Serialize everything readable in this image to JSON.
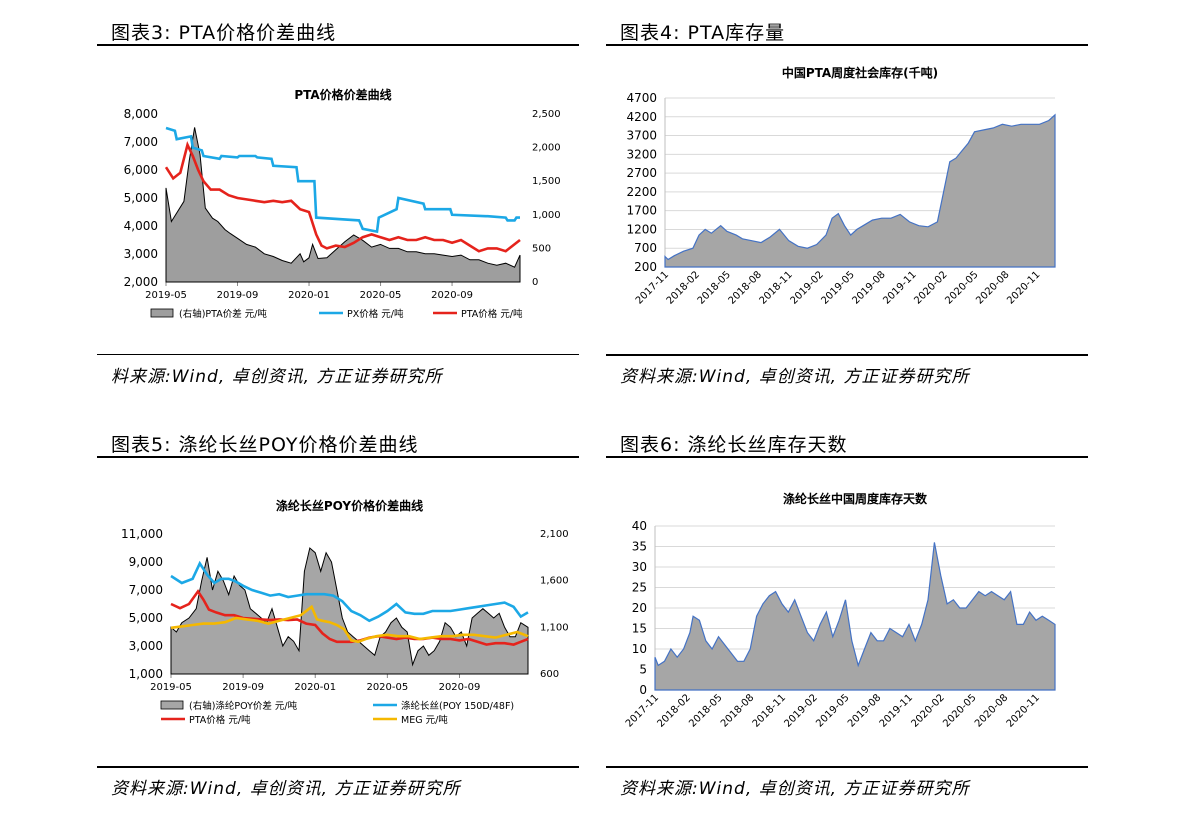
{
  "panels": [
    {
      "heading": "图表3:  PTA价格价差曲线",
      "source": "料来源:Wind, 卓创资讯, 方正证券研究所"
    },
    {
      "heading": "图表4:  PTA库存量",
      "source": "资料来源:Wind, 卓创资讯, 方正证券研究所"
    },
    {
      "heading": "图表5:  涤纶长丝POY价格价差曲线",
      "source": "资料来源:Wind, 卓创资讯, 方正证券研究所"
    },
    {
      "heading": "图表6:  涤纶长丝库存天数",
      "source": "资料来源:Wind, 卓创资讯, 方正证券研究所"
    }
  ],
  "chart_data": [
    {
      "type": "line",
      "title": "PTA价格价差曲线",
      "x_range": [
        "2019-05",
        "2020-12"
      ],
      "x_tick_labels": [
        "2019-05",
        "2019-09",
        "2020-01",
        "2020-05",
        "2020-09"
      ],
      "y_left": {
        "min": 2000,
        "max": 8000,
        "ticks": [
          "2,000",
          "3,000",
          "4,000",
          "5,000",
          "6,000",
          "7,000",
          "8,000"
        ]
      },
      "y_right": {
        "min": 0,
        "max": 2500,
        "ticks": [
          "0",
          "500",
          "1,000",
          "1,500",
          "2,000",
          "2,500"
        ]
      },
      "legend": [
        "(右轴)PTA价差  元/吨",
        "PX价格  元/吨",
        "PTA价格  元/吨"
      ],
      "legend_position": "bottom",
      "series": [
        {
          "name": "(右轴)PTA价差  元/吨",
          "axis": "right",
          "type": "area",
          "color": "#9e9e9e",
          "x": [
            0,
            0.3,
            1,
            1.3,
            1.6,
            1.9,
            2.2,
            2.6,
            2.9,
            3.3,
            3.6,
            4,
            4.5,
            5,
            5.5,
            6,
            6.5,
            7,
            7.5,
            7.7,
            8,
            8.2,
            8.5,
            9,
            9.5,
            10,
            10.5,
            11,
            11.5,
            12,
            12.5,
            13,
            13.5,
            14,
            14.5,
            15,
            15.5,
            16,
            16.5,
            17,
            17.5,
            18,
            18.5,
            19,
            19.5,
            19.8
          ],
          "values": [
            1400,
            900,
            1200,
            1800,
            2300,
            1900,
            1100,
            950,
            900,
            780,
            720,
            650,
            560,
            520,
            420,
            380,
            320,
            280,
            420,
            300,
            360,
            560,
            350,
            360,
            480,
            600,
            700,
            620,
            520,
            560,
            500,
            500,
            450,
            450,
            420,
            420,
            400,
            380,
            400,
            330,
            330,
            280,
            250,
            280,
            220,
            400
          ]
        },
        {
          "name": "PX价格  元/吨",
          "axis": "left",
          "type": "line",
          "color": "#1ca8e6",
          "x": [
            0,
            0.5,
            0.6,
            1.4,
            1.5,
            2.0,
            2.1,
            3.0,
            3.1,
            4.0,
            4.1,
            5.0,
            5.1,
            5.9,
            6.0,
            7.3,
            7.4,
            8.3,
            8.4,
            10.8,
            11.0,
            11.8,
            11.9,
            12.9,
            13.0,
            14.4,
            14.5,
            15.9,
            16.0,
            17.9,
            18.0,
            19.0,
            19.1,
            19.5,
            19.6,
            19.8
          ],
          "values": [
            7500,
            7400,
            7100,
            7200,
            6800,
            6700,
            6500,
            6400,
            6500,
            6450,
            6500,
            6500,
            6450,
            6400,
            6150,
            6100,
            5600,
            5600,
            4300,
            4200,
            3900,
            3800,
            4300,
            4600,
            5000,
            4800,
            4600,
            4600,
            4400,
            4350,
            4350,
            4300,
            4200,
            4200,
            4300,
            4300
          ]
        },
        {
          "name": "PTA价格  元/吨",
          "axis": "left",
          "type": "line",
          "color": "#e5231c",
          "x": [
            0,
            0.4,
            0.8,
            1.2,
            1.5,
            1.8,
            2.1,
            2.5,
            3,
            3.5,
            4,
            4.5,
            5,
            5.5,
            6,
            6.5,
            7,
            7.5,
            8,
            8.4,
            8.7,
            9,
            9.5,
            10,
            10.5,
            11,
            11.5,
            12,
            12.5,
            13,
            13.5,
            14,
            14.5,
            15,
            15.5,
            16,
            16.5,
            17,
            17.5,
            18,
            18.5,
            19,
            19.4,
            19.8
          ],
          "values": [
            6100,
            5700,
            5900,
            6900,
            6500,
            6000,
            5600,
            5300,
            5300,
            5100,
            5000,
            4950,
            4900,
            4850,
            4900,
            4850,
            4900,
            4600,
            4500,
            3700,
            3300,
            3200,
            3300,
            3250,
            3400,
            3600,
            3700,
            3600,
            3500,
            3600,
            3500,
            3500,
            3600,
            3500,
            3500,
            3400,
            3500,
            3300,
            3100,
            3200,
            3200,
            3100,
            3300,
            3500
          ]
        }
      ]
    },
    {
      "type": "area",
      "title": "中国PTA周度社会库存(千吨)",
      "x_tick_labels": [
        "2017-11",
        "2018-02",
        "2018-05",
        "2018-08",
        "2018-11",
        "2019-02",
        "2019-05",
        "2019-08",
        "2019-11",
        "2020-02",
        "2020-05",
        "2020-08",
        "2020-11"
      ],
      "y": {
        "min": 200,
        "max": 4700,
        "ticks": [
          "200",
          "700",
          "1200",
          "1700",
          "2200",
          "2700",
          "3200",
          "3700",
          "4200",
          "4700"
        ]
      },
      "series": [
        {
          "name": "",
          "color": "#a6a6a6",
          "x": [
            0,
            0.1,
            0.3,
            0.6,
            0.9,
            1.1,
            1.3,
            1.5,
            1.8,
            2.0,
            2.3,
            2.5,
            2.8,
            3.1,
            3.4,
            3.7,
            4.0,
            4.3,
            4.6,
            4.9,
            5.2,
            5.4,
            5.6,
            5.8,
            6.0,
            6.2,
            6.4,
            6.7,
            7.0,
            7.3,
            7.6,
            7.9,
            8.2,
            8.5,
            8.8,
            9.0,
            9.2,
            9.4,
            9.6,
            9.8,
            10.0,
            10.3,
            10.6,
            10.9,
            11.2,
            11.5,
            11.8,
            12.1,
            12.4,
            12.6
          ],
          "values": [
            480,
            400,
            500,
            620,
            700,
            1050,
            1200,
            1100,
            1300,
            1150,
            1050,
            950,
            900,
            850,
            1000,
            1200,
            900,
            750,
            700,
            800,
            1050,
            1500,
            1620,
            1300,
            1050,
            1200,
            1300,
            1450,
            1500,
            1500,
            1600,
            1400,
            1300,
            1270,
            1400,
            2200,
            3000,
            3100,
            3300,
            3500,
            3800,
            3850,
            3900,
            4000,
            3950,
            4000,
            4000,
            4000,
            4100,
            4250
          ]
        }
      ]
    },
    {
      "type": "line",
      "title": "涤纶长丝POY价格价差曲线",
      "x_range": [
        "2019-05",
        "2020-12"
      ],
      "x_tick_labels": [
        "2019-05",
        "2019-09",
        "2020-01",
        "2020-05",
        "2020-09"
      ],
      "y_left": {
        "min": 1000,
        "max": 11000,
        "ticks": [
          "1,000",
          "3,000",
          "5,000",
          "7,000",
          "9,000",
          "11,000"
        ]
      },
      "y_right": {
        "min": 600,
        "max": 2100,
        "ticks": [
          "600",
          "1,100",
          "1,600",
          "2,100"
        ]
      },
      "legend": [
        "(右轴)涤纶POY价差  元/吨",
        "涤纶长丝(POY 150D/48F)",
        "PTA价格  元/吨",
        "MEG  元/吨"
      ],
      "legend_position": "bottom",
      "series": [
        {
          "name": "(右轴)涤纶POY价差  元/吨",
          "axis": "right",
          "type": "area",
          "color": "#a6a6a6",
          "x": [
            0,
            0.3,
            0.6,
            1.0,
            1.4,
            1.7,
            2.0,
            2.3,
            2.6,
            2.9,
            3.2,
            3.5,
            3.8,
            4.1,
            4.4,
            4.7,
            5.0,
            5.3,
            5.6,
            5.9,
            6.2,
            6.5,
            6.8,
            7.1,
            7.4,
            7.7,
            8.0,
            8.3,
            8.6,
            8.9,
            9.2,
            9.5,
            9.8,
            10.1,
            10.4,
            10.7,
            11.0,
            11.3,
            11.6,
            11.9,
            12.2,
            12.5,
            12.8,
            13.1,
            13.4,
            13.7,
            14.0,
            14.3,
            14.6,
            14.9,
            15.2,
            15.5,
            15.8,
            16.1,
            16.4,
            16.7,
            17.0,
            17.3,
            17.6,
            17.9,
            18.2,
            18.5,
            18.8,
            19.1,
            19.4,
            19.8
          ],
          "values": [
            1100,
            1050,
            1150,
            1200,
            1300,
            1600,
            1850,
            1500,
            1700,
            1600,
            1450,
            1650,
            1550,
            1500,
            1300,
            1250,
            1200,
            1150,
            1300,
            1100,
            900,
            1000,
            950,
            850,
            1700,
            1950,
            1900,
            1700,
            1900,
            1800,
            1500,
            1200,
            1050,
            1000,
            950,
            900,
            850,
            800,
            1000,
            1050,
            1150,
            1200,
            1100,
            1050,
            700,
            850,
            900,
            800,
            850,
            950,
            1150,
            1100,
            1000,
            1050,
            900,
            1200,
            1250,
            1300,
            1250,
            1200,
            1250,
            1100,
            1000,
            1000,
            1150,
            1100
          ]
        },
        {
          "name": "涤纶长丝(POY 150D/48F)",
          "axis": "left",
          "type": "line",
          "color": "#1ca8e6",
          "x": [
            0,
            0.6,
            1.2,
            1.6,
            2.0,
            2.4,
            2.8,
            3.2,
            3.6,
            4.0,
            4.5,
            5.0,
            5.5,
            6.0,
            6.5,
            7.0,
            7.5,
            8.0,
            8.5,
            9.0,
            9.5,
            10.0,
            10.5,
            11.0,
            11.5,
            12.0,
            12.5,
            13.0,
            13.5,
            14.0,
            14.5,
            15.0,
            15.5,
            16.0,
            16.5,
            17.0,
            17.5,
            18.0,
            18.5,
            19.0,
            19.4,
            19.8
          ],
          "values": [
            8000,
            7500,
            7800,
            8900,
            8100,
            7500,
            7800,
            7800,
            7600,
            7300,
            7000,
            6800,
            6600,
            6700,
            6500,
            6600,
            6700,
            6700,
            6700,
            6600,
            6200,
            5500,
            5200,
            4800,
            5100,
            5500,
            6000,
            5400,
            5300,
            5300,
            5500,
            5500,
            5500,
            5600,
            5700,
            5800,
            5900,
            6000,
            6100,
            5800,
            5100,
            5400
          ]
        },
        {
          "name": "PTA价格  元/吨",
          "axis": "left",
          "type": "line",
          "color": "#e5231c",
          "x": [
            0,
            0.5,
            1.0,
            1.5,
            1.8,
            2.1,
            2.5,
            3.0,
            3.5,
            4.0,
            4.5,
            5.0,
            5.5,
            6.0,
            6.5,
            7.0,
            7.5,
            8.0,
            8.4,
            8.8,
            9.2,
            9.6,
            10.0,
            10.5,
            11.0,
            11.5,
            12.0,
            12.5,
            13.0,
            13.5,
            14.0,
            14.5,
            15.0,
            15.5,
            16.0,
            16.5,
            17.0,
            17.5,
            18.0,
            18.5,
            19.0,
            19.4,
            19.8
          ],
          "values": [
            6000,
            5700,
            6000,
            6900,
            6300,
            5600,
            5400,
            5200,
            5200,
            5000,
            4950,
            4900,
            4850,
            4900,
            4850,
            4900,
            4600,
            4500,
            3900,
            3500,
            3300,
            3300,
            3300,
            3400,
            3600,
            3700,
            3600,
            3500,
            3600,
            3500,
            3500,
            3600,
            3500,
            3500,
            3400,
            3500,
            3300,
            3100,
            3200,
            3200,
            3100,
            3300,
            3500
          ]
        },
        {
          "name": "MEG  元/吨",
          "axis": "left",
          "type": "line",
          "color": "#f5b800",
          "x": [
            0,
            0.6,
            1.2,
            1.8,
            2.4,
            3.0,
            3.6,
            4.2,
            4.8,
            5.4,
            6.0,
            6.6,
            7.2,
            7.8,
            8.1,
            8.4,
            8.8,
            9.2,
            9.6,
            10.0,
            10.4,
            10.8,
            11.4,
            12.0,
            12.6,
            13.2,
            13.8,
            14.4,
            15.0,
            15.6,
            16.2,
            16.8,
            17.4,
            18.0,
            18.6,
            19.2,
            19.8
          ],
          "values": [
            4300,
            4400,
            4500,
            4600,
            4600,
            4700,
            5000,
            4900,
            4800,
            4600,
            4800,
            5000,
            5200,
            5800,
            4900,
            4800,
            4700,
            4500,
            4200,
            3400,
            3300,
            3500,
            3700,
            3800,
            3700,
            3700,
            3500,
            3600,
            3700,
            3700,
            3800,
            3800,
            3700,
            3600,
            3800,
            4000,
            3700
          ]
        }
      ]
    },
    {
      "type": "area",
      "title": "涤纶长丝中国周度库存天数",
      "x_tick_labels": [
        "2017-11",
        "2018-02",
        "2018-05",
        "2018-08",
        "2018-11",
        "2019-02",
        "2019-05",
        "2019-08",
        "2019-11",
        "2020-02",
        "2020-05",
        "2020-08",
        "2020-11"
      ],
      "y": {
        "min": 0,
        "max": 40,
        "ticks": [
          "0",
          "5",
          "10",
          "15",
          "20",
          "25",
          "30",
          "35",
          "40"
        ]
      },
      "series": [
        {
          "name": "",
          "color": "#a6a6a6",
          "x": [
            0,
            0.1,
            0.3,
            0.5,
            0.7,
            0.9,
            1.1,
            1.2,
            1.4,
            1.6,
            1.8,
            2.0,
            2.2,
            2.4,
            2.6,
            2.8,
            3.0,
            3.2,
            3.4,
            3.6,
            3.8,
            4.0,
            4.2,
            4.4,
            4.6,
            4.8,
            5.0,
            5.2,
            5.4,
            5.6,
            5.8,
            6.0,
            6.2,
            6.4,
            6.6,
            6.8,
            7.0,
            7.2,
            7.4,
            7.6,
            7.8,
            8.0,
            8.2,
            8.4,
            8.6,
            8.8,
            9.0,
            9.2,
            9.4,
            9.6,
            9.8,
            10.0,
            10.2,
            10.4,
            10.6,
            10.8,
            11.0,
            11.2,
            11.4,
            11.6,
            11.8,
            12.0,
            12.2,
            12.4,
            12.6
          ],
          "values": [
            8,
            6,
            7,
            10,
            8,
            10,
            14,
            18,
            17,
            12,
            10,
            13,
            11,
            9,
            7,
            7,
            10,
            18,
            21,
            23,
            24,
            21,
            19,
            22,
            18,
            14,
            12,
            16,
            19,
            13,
            17,
            22,
            12,
            6,
            10,
            14,
            12,
            12,
            15,
            14,
            13,
            16,
            12,
            16,
            22,
            36,
            28,
            21,
            22,
            20,
            20,
            22,
            24,
            23,
            24,
            23,
            22,
            24,
            16,
            16,
            19,
            17,
            18,
            17,
            16
          ]
        }
      ]
    }
  ]
}
